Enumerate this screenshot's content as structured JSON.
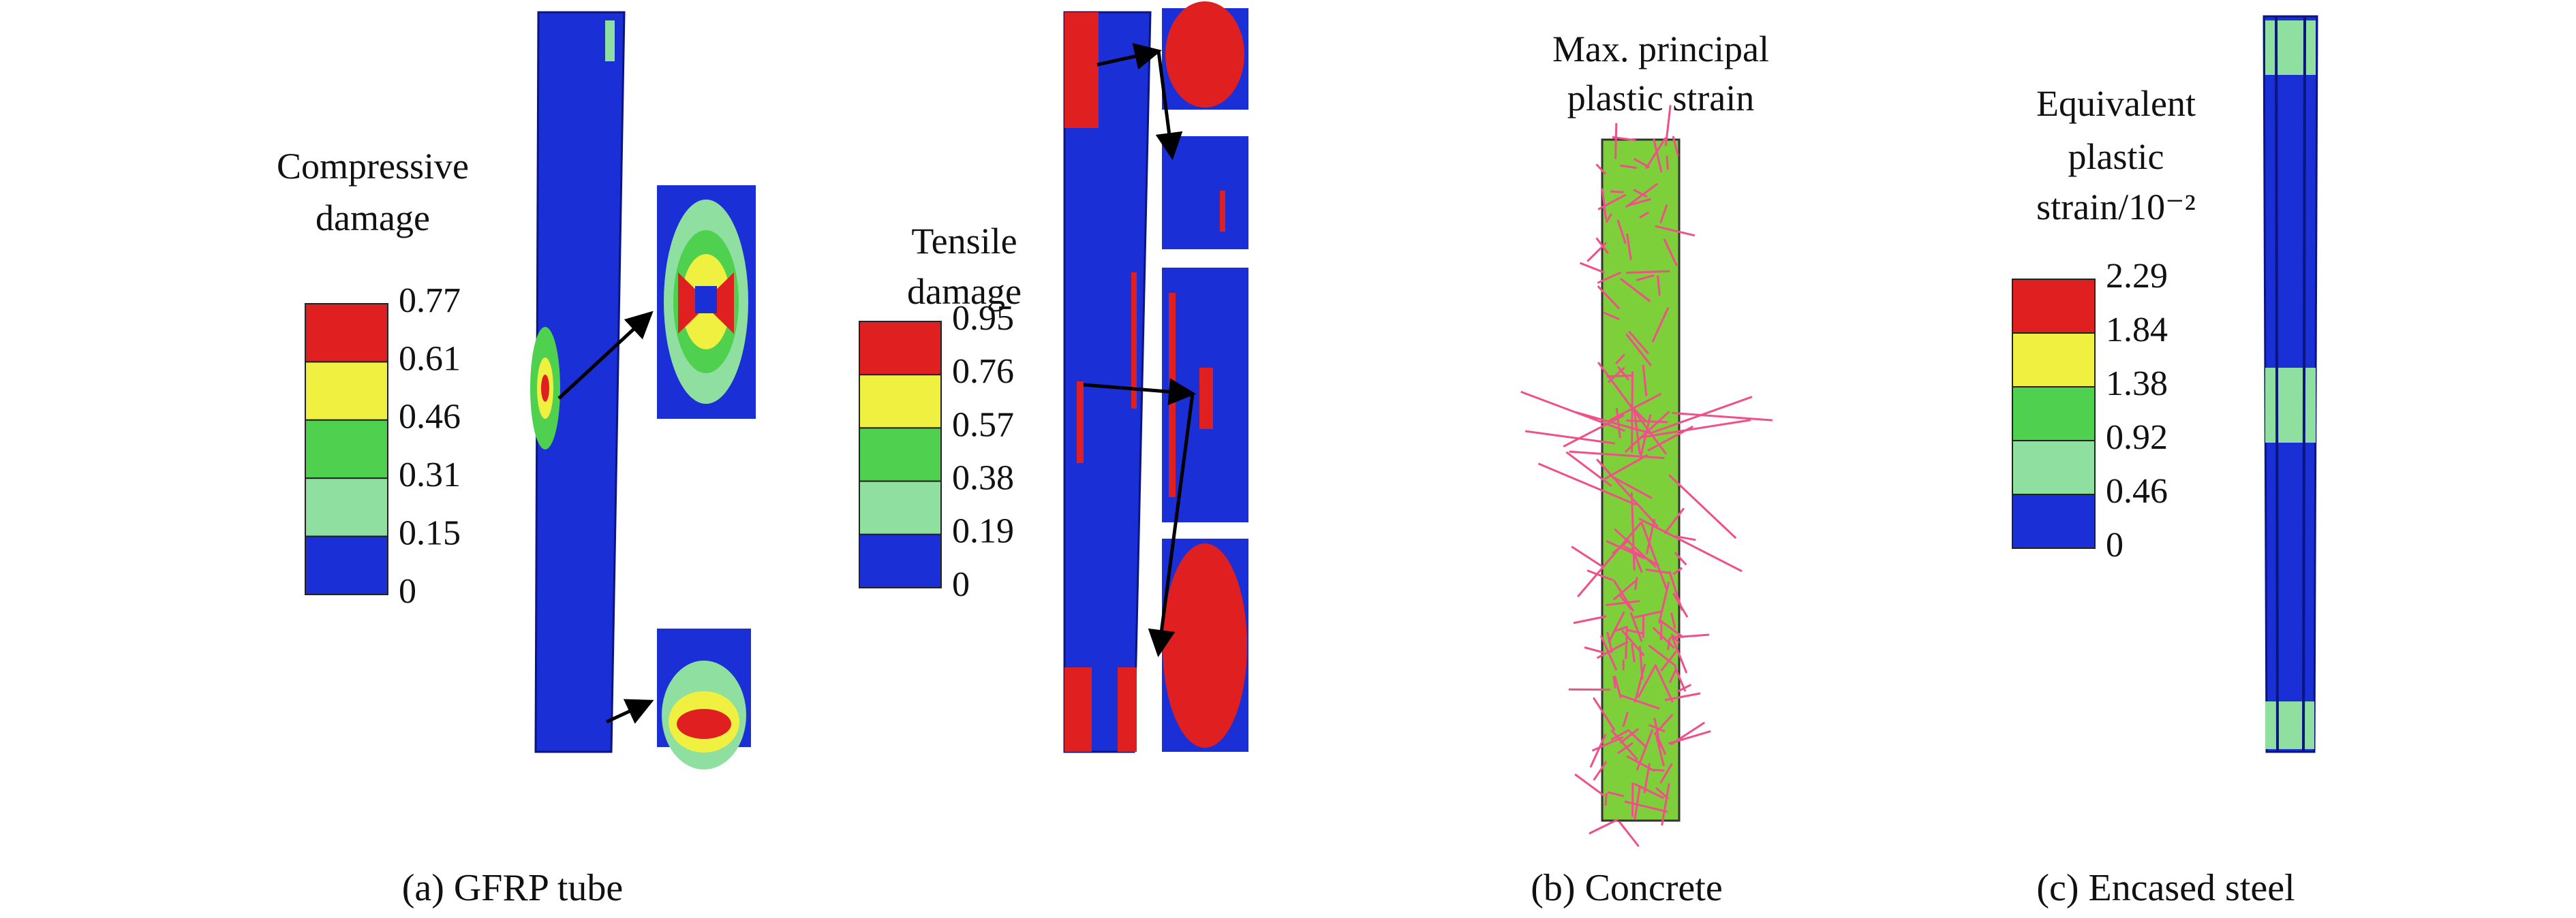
{
  "panels": [
    {
      "caption": "(a) GFRP tube",
      "legends": [
        {
          "title": [
            "Compressive",
            "damage"
          ],
          "labels": [
            "0.77",
            "0.61",
            "0.46",
            "0.31",
            "0.15",
            "0"
          ]
        },
        {
          "title": [
            "Tensile",
            "damage"
          ],
          "labels": [
            "0.95",
            "0.76",
            "0.57",
            "0.38",
            "0.19",
            "0"
          ]
        }
      ]
    },
    {
      "caption": "(b) Concrete",
      "legends": [
        {
          "title": [
            "Max. principal",
            "plastic strain"
          ]
        }
      ]
    },
    {
      "caption": "(c) Encased steel",
      "legends": [
        {
          "title": [
            "Equivalent",
            "plastic",
            "strain/10⁻²"
          ],
          "labels": [
            "2.29",
            "1.84",
            "1.38",
            "0.92",
            "0.46",
            "0"
          ]
        }
      ]
    }
  ]
}
